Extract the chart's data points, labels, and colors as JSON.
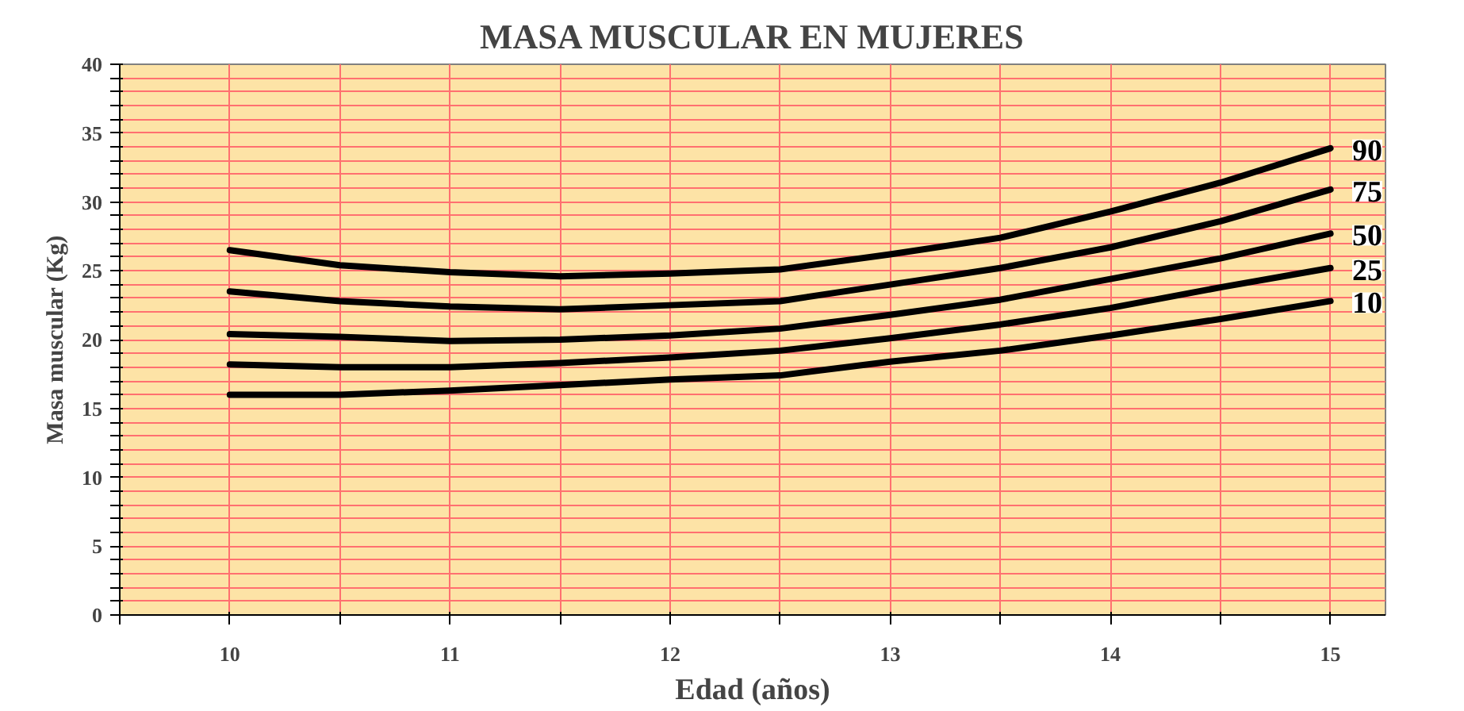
{
  "chart_data": {
    "type": "line",
    "title": "MASA MUSCULAR EN MUJERES",
    "xlabel": "Edad (años)",
    "ylabel": "Masa muscular (Kg)",
    "x": [
      10,
      10.5,
      11,
      11.5,
      12,
      12.5,
      13,
      13.5,
      14,
      14.5,
      15
    ],
    "series": [
      {
        "name": "90",
        "color": "#000000",
        "values": [
          26.5,
          25.4,
          24.9,
          24.6,
          24.8,
          25.1,
          26.2,
          27.4,
          29.3,
          31.4,
          33.9
        ]
      },
      {
        "name": "75",
        "color": "#000000",
        "values": [
          23.5,
          22.8,
          22.4,
          22.2,
          22.5,
          22.8,
          24.0,
          25.2,
          26.7,
          28.6,
          30.9
        ]
      },
      {
        "name": "50",
        "color": "#000000",
        "values": [
          20.4,
          20.2,
          19.9,
          20.0,
          20.3,
          20.8,
          21.8,
          22.9,
          24.4,
          25.9,
          27.7
        ]
      },
      {
        "name": "25",
        "color": "#000000",
        "values": [
          18.2,
          18.0,
          18.0,
          18.3,
          18.7,
          19.2,
          20.1,
          21.1,
          22.3,
          23.8,
          25.2
        ]
      },
      {
        "name": "10",
        "color": "#000000",
        "values": [
          16.0,
          16.0,
          16.3,
          16.7,
          17.1,
          17.4,
          18.4,
          19.2,
          20.3,
          21.5,
          22.8
        ]
      }
    ],
    "xlim": [
      9.5,
      15.25
    ],
    "xticks": [
      {
        "value": 9.5,
        "label": null
      },
      10,
      {
        "value": 10.5,
        "label": null
      },
      11,
      {
        "value": 11.5,
        "label": null
      },
      12,
      {
        "value": 12.5,
        "label": null
      },
      13,
      {
        "value": 13.5,
        "label": null
      },
      14,
      {
        "value": 14.5,
        "label": null
      },
      15
    ],
    "ylim": [
      0,
      40
    ],
    "yticks": [
      0,
      {
        "value": 1,
        "label": null
      },
      {
        "value": 2,
        "label": null
      },
      {
        "value": 3,
        "label": null
      },
      {
        "value": 4,
        "label": null
      },
      5,
      {
        "value": 6,
        "label": null
      },
      {
        "value": 7,
        "label": null
      },
      {
        "value": 8,
        "label": null
      },
      {
        "value": 9,
        "label": null
      },
      10,
      {
        "value": 11,
        "label": null
      },
      {
        "value": 12,
        "label": null
      },
      {
        "value": 13,
        "label": null
      },
      {
        "value": 14,
        "label": null
      },
      15,
      {
        "value": 16,
        "label": null
      },
      {
        "value": 17,
        "label": null
      },
      {
        "value": 18,
        "label": null
      },
      {
        "value": 19,
        "label": null
      },
      20,
      {
        "value": 21,
        "label": null
      },
      {
        "value": 22,
        "label": null
      },
      {
        "value": 23,
        "label": null
      },
      {
        "value": 24,
        "label": null
      },
      25,
      {
        "value": 26,
        "label": null
      },
      {
        "value": 27,
        "label": null
      },
      {
        "value": 28,
        "label": null
      },
      {
        "value": 29,
        "label": null
      },
      30,
      {
        "value": 31,
        "label": null
      },
      {
        "value": 32,
        "label": null
      },
      {
        "value": 33,
        "label": null
      },
      {
        "value": 34,
        "label": null
      },
      35,
      {
        "value": 36,
        "label": null
      },
      {
        "value": 37,
        "label": null
      },
      {
        "value": 38,
        "label": null
      },
      {
        "value": 39,
        "label": null
      },
      40
    ],
    "grid": true,
    "line_style": "solid",
    "marker": "none"
  }
}
